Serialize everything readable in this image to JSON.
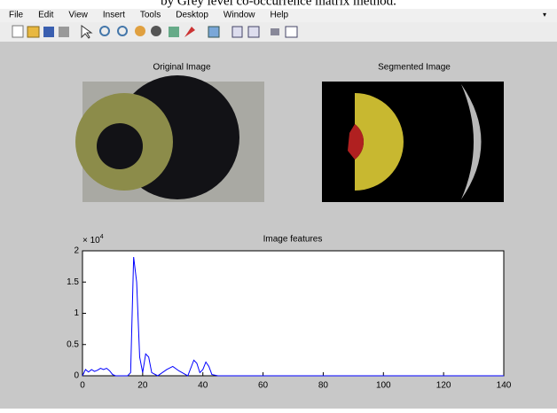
{
  "caption": "by Grey level co-occurrence matrix method.",
  "menu": [
    "File",
    "Edit",
    "View",
    "Insert",
    "Tools",
    "Desktop",
    "Window",
    "Help"
  ],
  "panels": [
    {
      "title": "Original Image"
    },
    {
      "title": "Segmented Image"
    }
  ],
  "chart_data": {
    "type": "line",
    "title": "Image features",
    "y_exponent": {
      "base": "× 10",
      "power": "4"
    },
    "x": [
      0,
      1,
      2,
      3,
      4,
      5,
      6,
      7,
      8,
      9,
      10,
      11,
      12,
      13,
      14,
      15,
      16,
      17,
      18,
      19,
      20,
      21,
      22,
      23,
      25,
      28,
      30,
      32,
      35,
      37,
      38,
      39,
      40,
      41,
      42,
      43,
      45,
      50,
      60,
      80,
      100,
      120,
      140
    ],
    "series": [
      {
        "color": "#0000ff",
        "values": [
          0,
          0.1,
          0.06,
          0.1,
          0.07,
          0.09,
          0.12,
          0.1,
          0.12,
          0.08,
          0.02,
          0,
          0,
          0,
          0,
          0,
          0.05,
          1.9,
          1.5,
          0.3,
          0.05,
          0.35,
          0.3,
          0.05,
          0,
          0.1,
          0.15,
          0.08,
          0,
          0.25,
          0.2,
          0.05,
          0.1,
          0.22,
          0.15,
          0.02,
          0,
          0,
          0,
          0,
          0,
          0,
          0
        ]
      }
    ],
    "xlim": [
      0,
      140
    ],
    "xticks": [
      0,
      20,
      40,
      60,
      80,
      100,
      120,
      140
    ],
    "ylim": [
      0,
      2
    ],
    "yticks": [
      0,
      0.5,
      1,
      1.5,
      2
    ]
  }
}
